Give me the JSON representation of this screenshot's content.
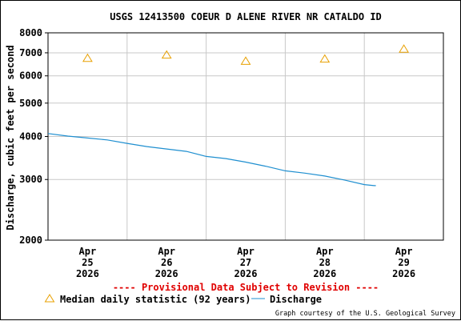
{
  "chart_data": {
    "type": "line",
    "title": "USGS 12413500 COEUR D ALENE RIVER NR CATALDO ID",
    "ylabel": "Discharge, cubic feet per second",
    "xlabel": "",
    "y_scale": "log",
    "ylim": [
      2000,
      8000
    ],
    "y_ticks": [
      {
        "value": 2000,
        "label": "2000"
      },
      {
        "value": 3000,
        "label": "3000"
      },
      {
        "value": 4000,
        "label": "4000"
      },
      {
        "value": 5000,
        "label": "5000"
      },
      {
        "value": 6000,
        "label": "6000"
      },
      {
        "value": 7000,
        "label": "7000"
      },
      {
        "value": 8000,
        "label": "8000"
      }
    ],
    "xlim": [
      "2026-04-25T00:00",
      "2026-04-30T00:00"
    ],
    "x_ticks": [
      {
        "value": "2026-04-25T12:00",
        "month": "Apr",
        "day": "25",
        "year": "2026"
      },
      {
        "value": "2026-04-26T12:00",
        "month": "Apr",
        "day": "26",
        "year": "2026"
      },
      {
        "value": "2026-04-27T12:00",
        "month": "Apr",
        "day": "27",
        "year": "2026"
      },
      {
        "value": "2026-04-28T12:00",
        "month": "Apr",
        "day": "28",
        "year": "2026"
      },
      {
        "value": "2026-04-29T12:00",
        "month": "Apr",
        "day": "29",
        "year": "2026"
      }
    ],
    "grid": true,
    "series": [
      {
        "name": "Discharge",
        "color": "#1f8fd0",
        "style": "line",
        "points": [
          {
            "x": "2026-04-25T00:00",
            "y": 4080
          },
          {
            "x": "2026-04-25T06:00",
            "y": 4010
          },
          {
            "x": "2026-04-25T12:00",
            "y": 3960
          },
          {
            "x": "2026-04-25T18:00",
            "y": 3910
          },
          {
            "x": "2026-04-26T00:00",
            "y": 3820
          },
          {
            "x": "2026-04-26T06:00",
            "y": 3740
          },
          {
            "x": "2026-04-26T12:00",
            "y": 3680
          },
          {
            "x": "2026-04-26T18:00",
            "y": 3620
          },
          {
            "x": "2026-04-27T00:00",
            "y": 3500
          },
          {
            "x": "2026-04-27T06:00",
            "y": 3450
          },
          {
            "x": "2026-04-27T12:00",
            "y": 3370
          },
          {
            "x": "2026-04-27T18:00",
            "y": 3280
          },
          {
            "x": "2026-04-28T00:00",
            "y": 3180
          },
          {
            "x": "2026-04-28T06:00",
            "y": 3130
          },
          {
            "x": "2026-04-28T12:00",
            "y": 3070
          },
          {
            "x": "2026-04-28T18:00",
            "y": 2990
          },
          {
            "x": "2026-04-29T00:00",
            "y": 2900
          },
          {
            "x": "2026-04-29T03:00",
            "y": 2880
          },
          {
            "x": "2026-04-29T03:30",
            "y": 2880
          }
        ]
      },
      {
        "name": "Median daily statistic (92 years)",
        "color": "#e8a000",
        "style": "triangle",
        "points": [
          {
            "x": "2026-04-25T12:00",
            "y": 6750
          },
          {
            "x": "2026-04-26T12:00",
            "y": 6900
          },
          {
            "x": "2026-04-27T12:00",
            "y": 6620
          },
          {
            "x": "2026-04-28T12:00",
            "y": 6720
          },
          {
            "x": "2026-04-29T12:00",
            "y": 7180
          }
        ]
      }
    ],
    "legend": {
      "placement": "bottom",
      "items": [
        {
          "label": "Median daily statistic (92 years)",
          "marker": "triangle",
          "color": "#e8a000"
        },
        {
          "label": "Discharge",
          "marker": "line",
          "color": "#1f8fd0"
        }
      ]
    },
    "annotations": {
      "provisional_notice": "---- Provisional Data Subject to Revision ----",
      "provisional_color": "#e00000",
      "credit": "Graph courtesy of the U.S. Geological Survey"
    }
  }
}
